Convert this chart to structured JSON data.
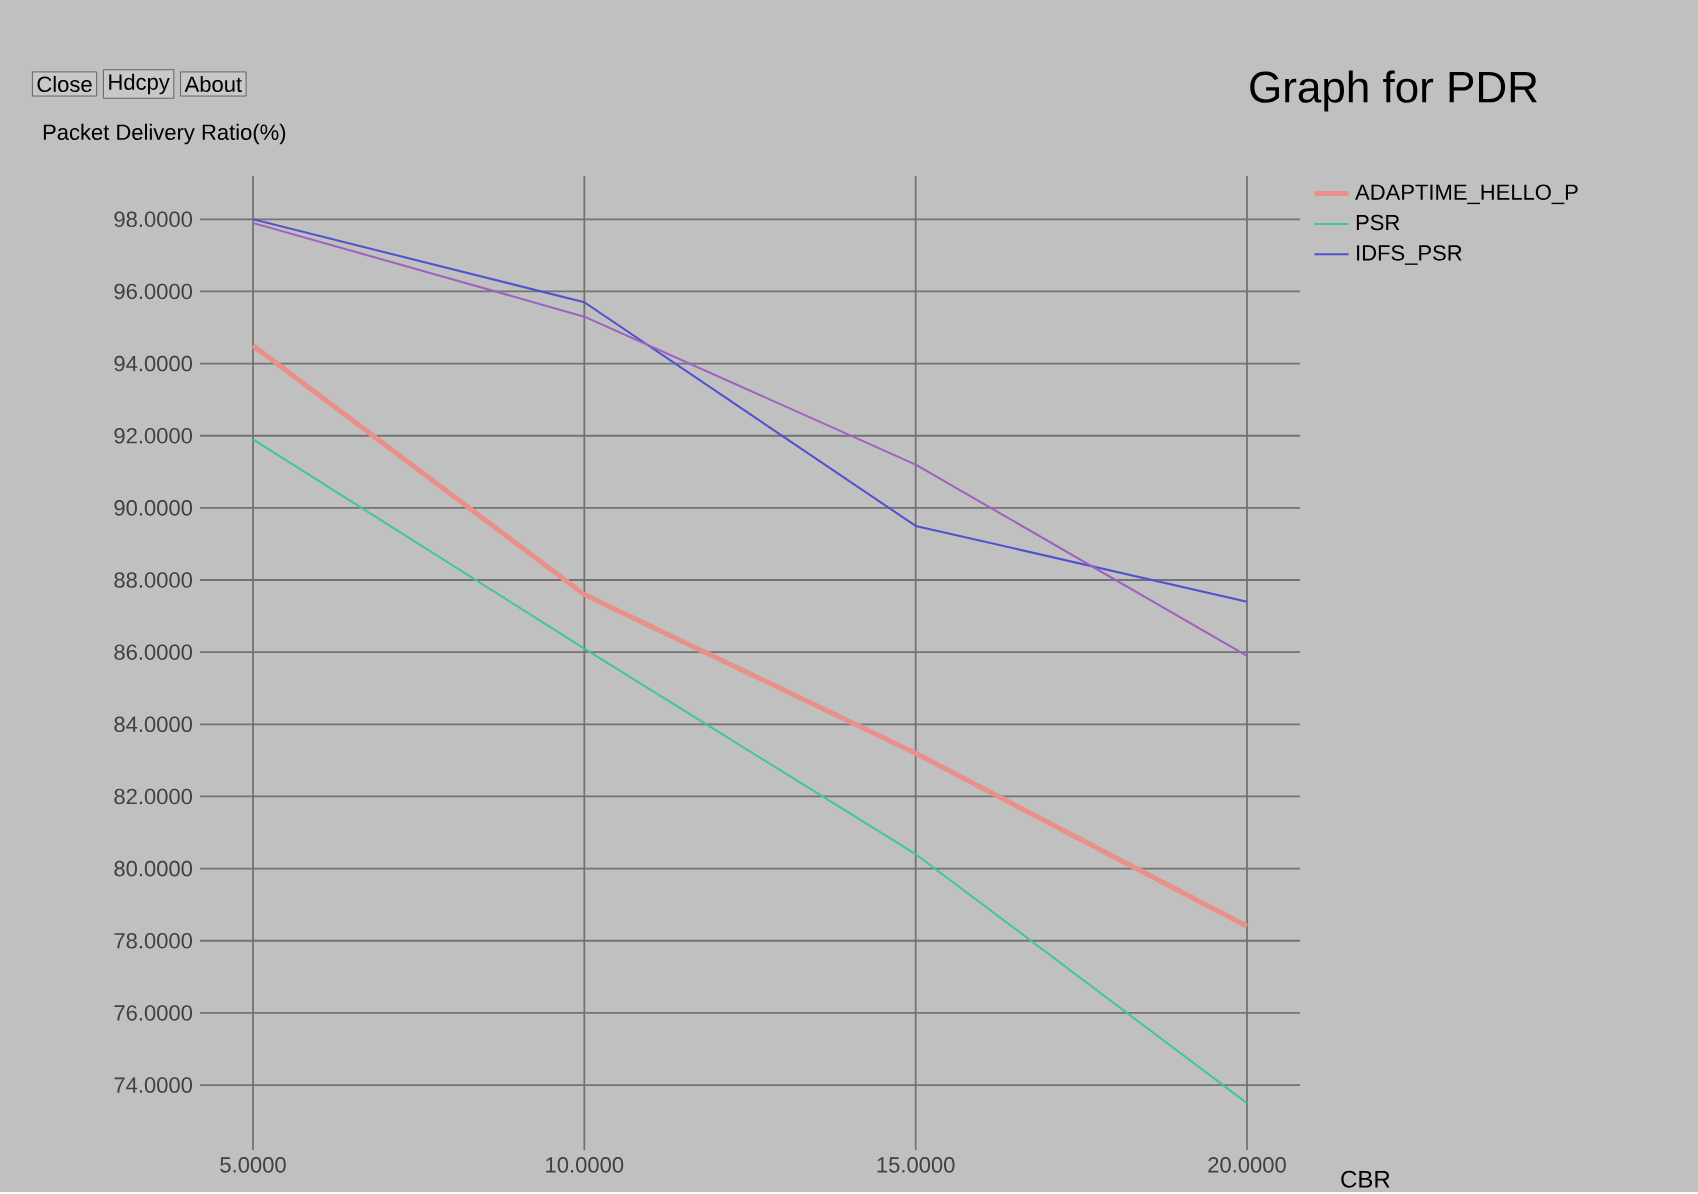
{
  "chart_data": {
    "type": "line",
    "title": "Graph for PDR",
    "ylabel": "Packet Delivery Ratio(%)",
    "xlabel": "CBR",
    "annotations": [
      "Close",
      "Hdcpy",
      "About"
    ],
    "x": [
      5,
      10,
      15,
      20
    ],
    "series": [
      {
        "name": "ADAPTIME_HELLO_P",
        "color": "#e8908a",
        "values": [
          94.5,
          87.6,
          83.2,
          78.4
        ]
      },
      {
        "name": "PSR",
        "color": "#40c890",
        "values": [
          91.9,
          86.1,
          80.4,
          73.5
        ]
      },
      {
        "name": "IDFS_PSR",
        "color": "#5050d0",
        "values": [
          98.0,
          95.7,
          89.5,
          87.4
        ]
      },
      {
        "color": "#a060c0",
        "values": [
          97.9,
          95.3,
          91.2,
          85.9
        ]
      }
    ],
    "xlim": [
      4.2,
      20.8
    ],
    "xticks": [
      {
        "value": 5,
        "label": "5.0000"
      },
      {
        "value": 10,
        "label": "10.0000"
      },
      {
        "value": 15,
        "label": "15.0000"
      },
      {
        "value": 20,
        "label": "20.0000"
      }
    ],
    "ylim": [
      72.2,
      99.2
    ],
    "yticks": [
      {
        "value": 74,
        "label": "74.0000"
      },
      {
        "value": 76,
        "label": "76.0000"
      },
      {
        "value": 78,
        "label": "78.0000"
      },
      {
        "value": 80,
        "label": "80.0000"
      },
      {
        "value": 82,
        "label": "82.0000"
      },
      {
        "value": 84,
        "label": "84.0000"
      },
      {
        "value": 86,
        "label": "86.0000"
      },
      {
        "value": 88,
        "label": "88.0000"
      },
      {
        "value": 90,
        "label": "90.0000"
      },
      {
        "value": 92,
        "label": "92.0000"
      },
      {
        "value": 94,
        "label": "94.0000"
      },
      {
        "value": 96,
        "label": "96.0000"
      },
      {
        "value": 98,
        "label": "98.0000"
      }
    ],
    "grid": true,
    "legend": "top right",
    "marker": "none",
    "line_style": "solid"
  }
}
